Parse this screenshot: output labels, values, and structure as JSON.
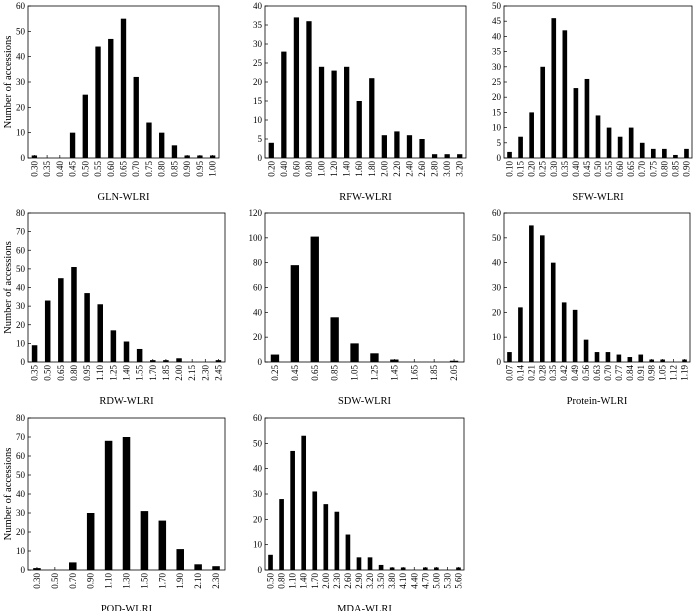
{
  "chart_data": [
    {
      "type": "bar",
      "xlabel": "GLN-WLRI",
      "ylabel": "Number of accessions",
      "ylim": [
        0,
        60
      ],
      "yticks": [
        0,
        10,
        20,
        30,
        40,
        50,
        60
      ],
      "categories": [
        "0.30",
        "0.35",
        "0.40",
        "0.45",
        "0.50",
        "0.55",
        "0.60",
        "0.65",
        "0.70",
        "0.75",
        "0.80",
        "0.85",
        "0.90",
        "0.95",
        "1.00"
      ],
      "values": [
        1,
        0,
        0,
        10,
        25,
        44,
        47,
        55,
        32,
        14,
        10,
        5,
        1,
        1,
        1
      ]
    },
    {
      "type": "bar",
      "xlabel": "RFW-WLRI",
      "ylabel": "",
      "ylim": [
        0,
        40
      ],
      "yticks": [
        0,
        5,
        10,
        15,
        20,
        25,
        30,
        35,
        40
      ],
      "categories": [
        "0.20",
        "0.40",
        "0.60",
        "0.80",
        "1.00",
        "1.20",
        "1.40",
        "1.60",
        "1.80",
        "2.00",
        "2.20",
        "2.40",
        "2.60",
        "2.80",
        "3.00",
        "3.20"
      ],
      "values": [
        4,
        28,
        37,
        36,
        24,
        23,
        24,
        15,
        21,
        6,
        7,
        6,
        5,
        1,
        1,
        1
      ]
    },
    {
      "type": "bar",
      "xlabel": "SFW-WLRI",
      "ylabel": "",
      "ylim": [
        0,
        50
      ],
      "yticks": [
        0,
        5,
        10,
        15,
        20,
        25,
        30,
        35,
        40,
        45,
        50
      ],
      "categories": [
        "0.10",
        "0.15",
        "0.20",
        "0.25",
        "0.30",
        "0.35",
        "0.40",
        "0.45",
        "0.50",
        "0.55",
        "0.60",
        "0.65",
        "0.70",
        "0.75",
        "0.80",
        "0.85",
        "0.90"
      ],
      "values": [
        2,
        7,
        15,
        30,
        46,
        42,
        23,
        26,
        14,
        10,
        7,
        10,
        5,
        3,
        3,
        1,
        3
      ]
    },
    {
      "type": "bar",
      "xlabel": "RDW-WLRI",
      "ylabel": "Number of accessions",
      "ylim": [
        0,
        80
      ],
      "yticks": [
        0,
        10,
        20,
        30,
        40,
        50,
        60,
        70,
        80
      ],
      "categories": [
        "0.35",
        "0.50",
        "0.65",
        "0.80",
        "0.95",
        "1.10",
        "1.25",
        "1.40",
        "1.55",
        "1.70",
        "1.85",
        "2.00",
        "2.15",
        "2.30",
        "2.45"
      ],
      "values": [
        9,
        33,
        45,
        51,
        37,
        31,
        17,
        11,
        7,
        1,
        1,
        2,
        0,
        0,
        1
      ]
    },
    {
      "type": "bar",
      "xlabel": "SDW-WLRI",
      "ylabel": "",
      "ylim": [
        0,
        120
      ],
      "yticks": [
        0,
        20,
        40,
        60,
        80,
        100,
        120
      ],
      "categories": [
        "0.25",
        "0.45",
        "0.65",
        "0.85",
        "1.05",
        "1.25",
        "1.45",
        "1.65",
        "1.85",
        "2.05"
      ],
      "values": [
        6,
        78,
        101,
        36,
        15,
        7,
        2,
        0,
        0,
        1
      ]
    },
    {
      "type": "bar",
      "xlabel": "Protein-WLRI",
      "ylabel": "",
      "ylim": [
        0,
        60
      ],
      "yticks": [
        0,
        10,
        20,
        30,
        40,
        50,
        60
      ],
      "categories": [
        "0.07",
        "0.14",
        "0.21",
        "0.28",
        "0.35",
        "0.42",
        "0.49",
        "0.56",
        "0.63",
        "0.70",
        "0.77",
        "0.84",
        "0.91",
        "0.98",
        "1.05",
        "1.12",
        "1.19"
      ],
      "values": [
        4,
        22,
        55,
        51,
        40,
        24,
        21,
        9,
        4,
        4,
        3,
        2,
        3,
        1,
        1,
        0,
        1
      ]
    },
    {
      "type": "bar",
      "xlabel": "POD-WLRI",
      "ylabel": "Number of accessions",
      "ylim": [
        0,
        80
      ],
      "yticks": [
        0,
        10,
        20,
        30,
        40,
        50,
        60,
        70,
        80
      ],
      "categories": [
        "0.30",
        "0.50",
        "0.70",
        "0.90",
        "1.10",
        "1.30",
        "1.50",
        "1.70",
        "1.90",
        "2.10",
        "2.30"
      ],
      "values": [
        1,
        0,
        4,
        30,
        68,
        70,
        31,
        26,
        11,
        3,
        2
      ]
    },
    {
      "type": "bar",
      "xlabel": "MDA-WLRI",
      "ylabel": "",
      "ylim": [
        0,
        60
      ],
      "yticks": [
        0,
        10,
        20,
        30,
        40,
        50,
        60
      ],
      "categories": [
        "0.50",
        "0.80",
        "1.10",
        "1.40",
        "1.70",
        "2.00",
        "2.30",
        "2.60",
        "2.90",
        "3.20",
        "3.50",
        "3.80",
        "4.10",
        "4.40",
        "4.70",
        "5.00",
        "5.30",
        "5.60"
      ],
      "values": [
        6,
        28,
        47,
        53,
        31,
        26,
        23,
        14,
        5,
        5,
        2,
        1,
        1,
        0,
        1,
        1,
        0,
        1
      ]
    }
  ]
}
